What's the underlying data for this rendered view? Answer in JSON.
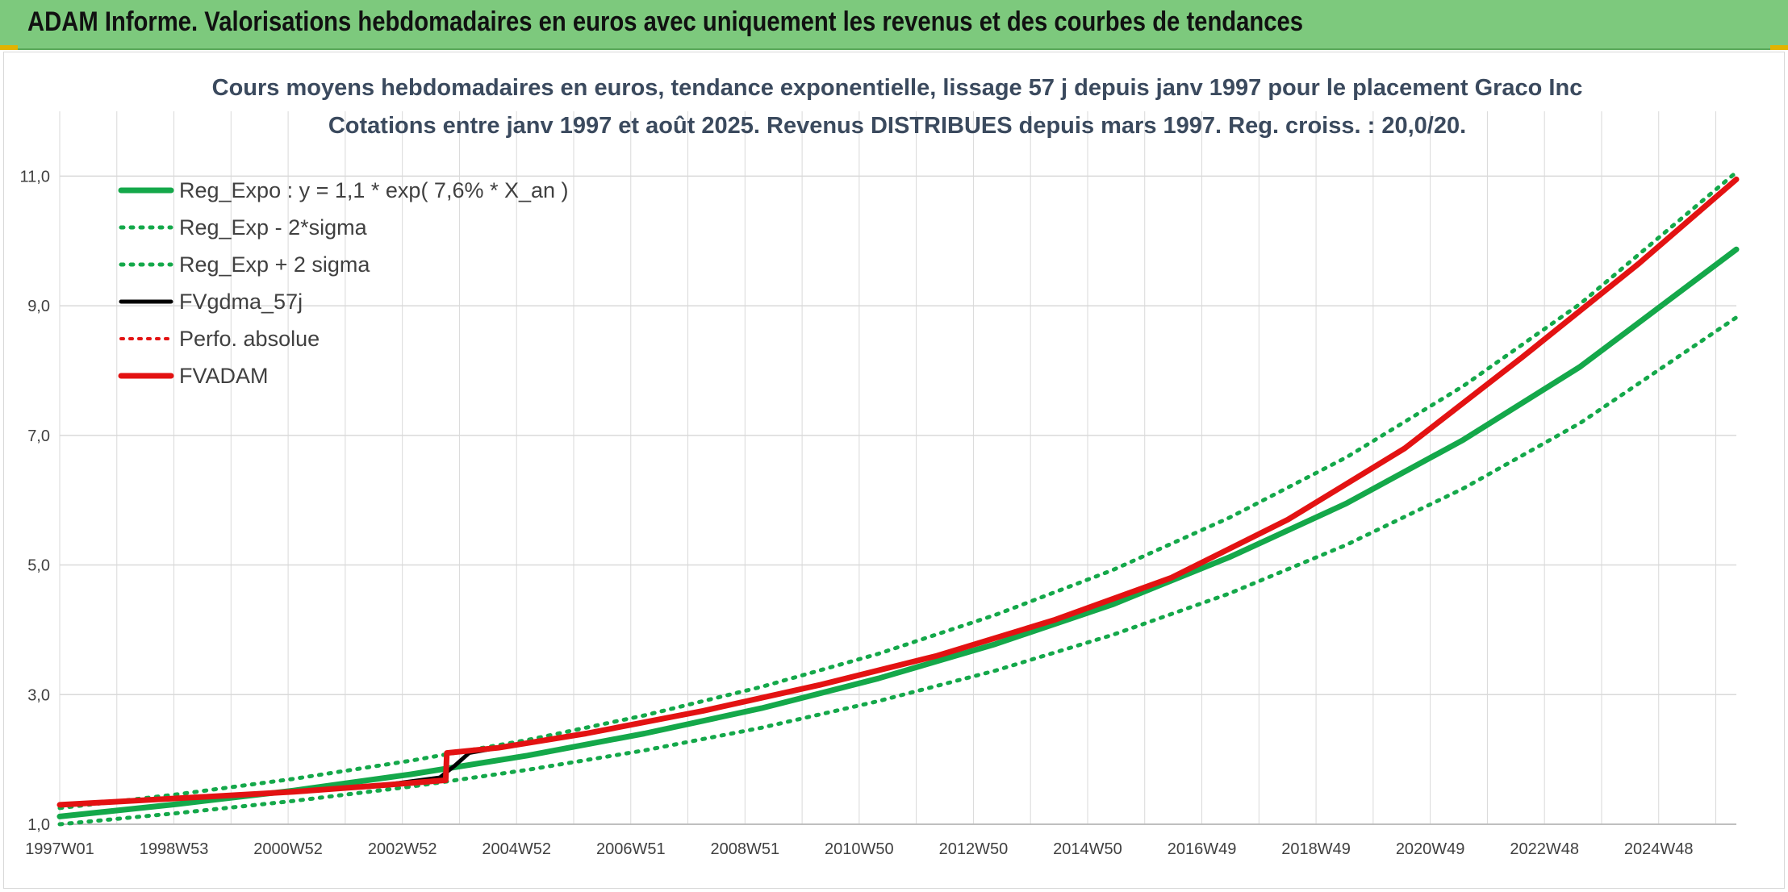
{
  "header": {
    "title": "ADAM Informe. Valorisations hebdomadaires en euros avec uniquement les revenus et des courbes de tendances"
  },
  "colors": {
    "banner": "#7dc97d",
    "trend_green": "#14a84a",
    "adam_red": "#e31212",
    "fv_black": "#000000",
    "grid": "#d9d9d9"
  },
  "chart_data": {
    "type": "line",
    "title": "Cours moyens hebdomadaires en euros, tendance exponentielle, lissage 57 j depuis janv 1997 pour le placement Graco Inc",
    "subtitle": "Cotations entre janv 1997 et août 2025. Revenus DISTRIBUES depuis mars 1997. Reg. croiss. : 20,0/20.",
    "xlabel": "",
    "ylabel": "",
    "ylim": [
      1.0,
      12.0
    ],
    "y_ticks": [
      "1,0",
      "3,0",
      "5,0",
      "7,0",
      "9,0",
      "11,0"
    ],
    "x_ticks": [
      "1997W01",
      "1998W53",
      "2000W52",
      "2002W52",
      "2004W52",
      "2006W51",
      "2008W51",
      "2010W50",
      "2012W50",
      "2014W50",
      "2016W49",
      "2018W49",
      "2020W49",
      "2022W48",
      "2024W48"
    ],
    "x_range_years": [
      1997.0,
      2025.67
    ],
    "grid": true,
    "legend_position": "top-left",
    "legend": [
      "Reg_Expo : y = 1,1 * exp( 7,6% *  X_an )",
      "Reg_Exp - 2*sigma",
      "Reg_Exp + 2 sigma",
      "FVgdma_57j",
      "Perfo. absolue",
      "FVADAM"
    ],
    "series": [
      {
        "name": "Reg_Expo : y = 1,1 * exp( 7,6% *  X_an )",
        "style": "solid-green-thick",
        "x": [
          1997.0,
          1999.0,
          2001.0,
          2003.0,
          2005.0,
          2007.0,
          2009.0,
          2011.0,
          2013.0,
          2015.0,
          2017.0,
          2019.0,
          2021.0,
          2023.0,
          2025.67
        ],
        "y": [
          1.12,
          1.31,
          1.52,
          1.77,
          2.06,
          2.4,
          2.79,
          3.25,
          3.78,
          4.39,
          5.12,
          5.95,
          6.93,
          8.06,
          9.87
        ]
      },
      {
        "name": "Reg_Exp - 2*sigma",
        "style": "dotted-green",
        "x": [
          1997.0,
          1999.0,
          2001.0,
          2003.0,
          2005.0,
          2007.0,
          2009.0,
          2011.0,
          2013.0,
          2015.0,
          2017.0,
          2019.0,
          2021.0,
          2023.0,
          2025.67
        ],
        "y": [
          1.0,
          1.17,
          1.36,
          1.58,
          1.84,
          2.14,
          2.49,
          2.9,
          3.37,
          3.92,
          4.56,
          5.31,
          6.18,
          7.19,
          8.82
        ]
      },
      {
        "name": "Reg_Exp + 2 sigma",
        "style": "dotted-green",
        "x": [
          1997.0,
          1999.0,
          2001.0,
          2003.0,
          2005.0,
          2007.0,
          2009.0,
          2011.0,
          2013.0,
          2015.0,
          2017.0,
          2019.0,
          2021.0,
          2023.0,
          2025.67
        ],
        "y": [
          1.25,
          1.46,
          1.7,
          1.98,
          2.3,
          2.68,
          3.12,
          3.63,
          4.23,
          4.92,
          5.73,
          6.66,
          7.76,
          9.03,
          11.06
        ]
      },
      {
        "name": "FVgdma_57j",
        "style": "solid-black",
        "x": [
          1997.0,
          1999.0,
          2001.0,
          2002.5,
          2003.5,
          2003.75,
          2004.0,
          2004.5,
          2006.0,
          2008.0,
          2010.0,
          2012.0,
          2014.0,
          2016.0,
          2018.0,
          2020.0,
          2022.0,
          2024.0,
          2025.67
        ],
        "y": [
          1.3,
          1.4,
          1.5,
          1.6,
          1.72,
          1.9,
          2.1,
          2.18,
          2.4,
          2.75,
          3.15,
          3.6,
          4.15,
          4.8,
          5.7,
          6.8,
          8.2,
          9.65,
          10.95
        ]
      },
      {
        "name": "Perfo. absolue",
        "style": "dotted-red",
        "x": [
          1997.0,
          1999.0,
          2001.0,
          2002.5,
          2003.6,
          2003.62,
          2004.5,
          2006.0,
          2008.0,
          2010.0,
          2012.0,
          2014.0,
          2016.0,
          2018.0,
          2020.0,
          2022.0,
          2024.0,
          2025.67
        ],
        "y": [
          1.3,
          1.4,
          1.5,
          1.6,
          1.68,
          2.1,
          2.18,
          2.4,
          2.75,
          3.15,
          3.6,
          4.15,
          4.8,
          5.7,
          6.8,
          8.2,
          9.65,
          10.95
        ]
      },
      {
        "name": "FVADAM",
        "style": "solid-red-thick",
        "x": [
          1997.0,
          1999.0,
          2001.0,
          2002.5,
          2003.6,
          2003.62,
          2004.5,
          2006.0,
          2008.0,
          2010.0,
          2012.0,
          2014.0,
          2016.0,
          2018.0,
          2020.0,
          2022.0,
          2024.0,
          2025.67
        ],
        "y": [
          1.3,
          1.4,
          1.5,
          1.6,
          1.68,
          2.1,
          2.18,
          2.4,
          2.75,
          3.15,
          3.6,
          4.15,
          4.8,
          5.7,
          6.8,
          8.2,
          9.65,
          10.95
        ]
      }
    ]
  }
}
